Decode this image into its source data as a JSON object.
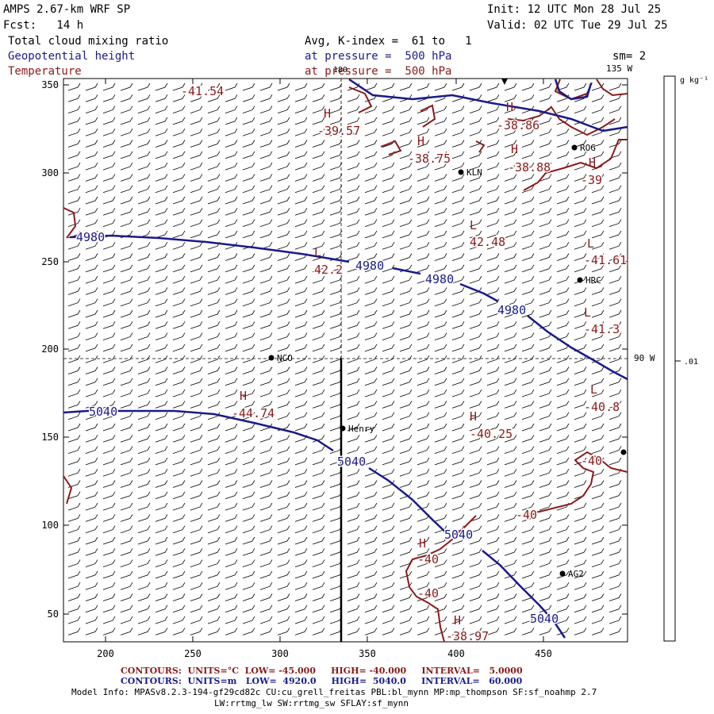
{
  "header": {
    "model_title": "AMPS 2.67-km WRF SP",
    "forecast": "Fcst:   14 h",
    "init": "Init: 12 UTC Mon 28 Jul 25",
    "valid": "Valid: 02 UTC Tue 29 Jul 25",
    "field1": "Total cloud mixing ratio",
    "field1_detail": "Avg, K-index =  61 to   1",
    "field2": "Geopotential height",
    "field2_detail": "at pressure =  500 hPa",
    "smoothing": "sm= 2",
    "field3": "Temperature",
    "field3_detail": "at pressure =  500 hPa"
  },
  "map": {
    "x_ticks": [
      "200",
      "250",
      "300",
      "350",
      "400",
      "450"
    ],
    "y_ticks": [
      "350",
      "300",
      "250",
      "200",
      "150",
      "100",
      "50"
    ],
    "meridian_top": "180",
    "meridian_right_top": "135 W",
    "meridian_right_mid": "90 W",
    "height_labels": [
      "4980",
      "4980",
      "4980",
      "4980",
      "5040",
      "5040",
      "5040",
      "5040"
    ],
    "temperature_labels": [
      "-41.54",
      "-39.57",
      "-38.75",
      "-38.86",
      "-38.88",
      "-39",
      "42.48",
      "-41.61",
      "42.2",
      "-41.3",
      "-44.74",
      "-40.25",
      "-40.8",
      "-40",
      "-40",
      "-40",
      "-40",
      "-38.97"
    ],
    "high_low_markers": [
      "H",
      "H",
      "H",
      "H",
      "H",
      "H",
      "L",
      "L",
      "L",
      "L",
      "H",
      "H",
      "L",
      "H"
    ],
    "stations": [
      "KLN",
      "ROG",
      "HRC",
      "NCO",
      "Henry",
      "AG2"
    ]
  },
  "colorbar": {
    "units": "g kg⁻¹",
    "label_mid": ".01"
  },
  "footer": {
    "temp_contours": "CONTOURS:  UNITS=°C  LOW= -45.000     HIGH= -40.000     INTERVAL=   5.0000",
    "height_contours": "CONTOURS:  UNITS=m   LOW=  4920.0     HIGH=  5040.0     INTERVAL=   60.000",
    "model_info_1": "Model Info: MPASv8.2.3-194-gf29cd82c CU:cu_grell_freitas PBL:bl_mynn MP:mp_thompson SF:sf_noahmp 2.7",
    "model_info_2": "LW:rrtmg_lw SW:rrtmg_sw SFLAY:sf_mynn"
  },
  "colors": {
    "height_contour": "#1a1a8c",
    "temperature_contour": "#8b1a1a",
    "frame": "#000000"
  }
}
